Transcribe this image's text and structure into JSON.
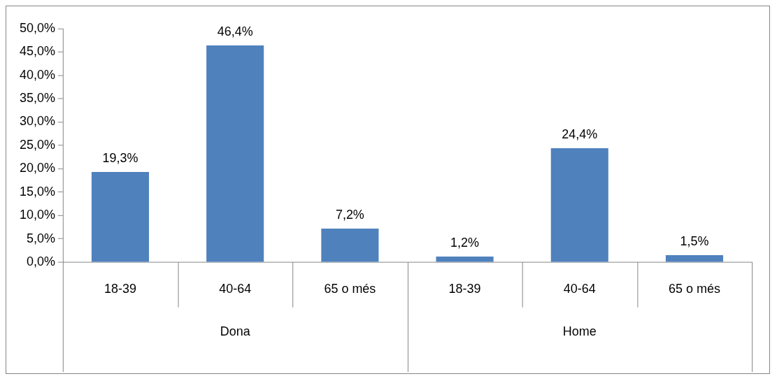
{
  "chart_data": {
    "type": "bar",
    "categories": [
      "18-39",
      "40-64",
      "65 o més",
      "18-39",
      "40-64",
      "65 o més"
    ],
    "values": [
      19.3,
      46.4,
      7.2,
      1.2,
      24.4,
      1.5
    ],
    "value_labels": [
      "19,3%",
      "46,4%",
      "7,2%",
      "1,2%",
      "24,4%",
      "1,5%"
    ],
    "color": "#4f81bd",
    "ylim": [
      0,
      50
    ],
    "yticks": [
      {
        "value": 0,
        "label": "0,0%"
      },
      {
        "value": 5,
        "label": "5,0%"
      },
      {
        "value": 10,
        "label": "10,0%"
      },
      {
        "value": 15,
        "label": "15,0%"
      },
      {
        "value": 20,
        "label": "20,0%"
      },
      {
        "value": 25,
        "label": "25,0%"
      },
      {
        "value": 30,
        "label": "30,0%"
      },
      {
        "value": 35,
        "label": "35,0%"
      },
      {
        "value": 40,
        "label": "40,0%"
      },
      {
        "value": 45,
        "label": "45,0%"
      },
      {
        "value": 50,
        "label": "50,0%"
      }
    ],
    "annotations": [
      "Dona",
      "Home"
    ],
    "grid": false,
    "legend": false
  }
}
